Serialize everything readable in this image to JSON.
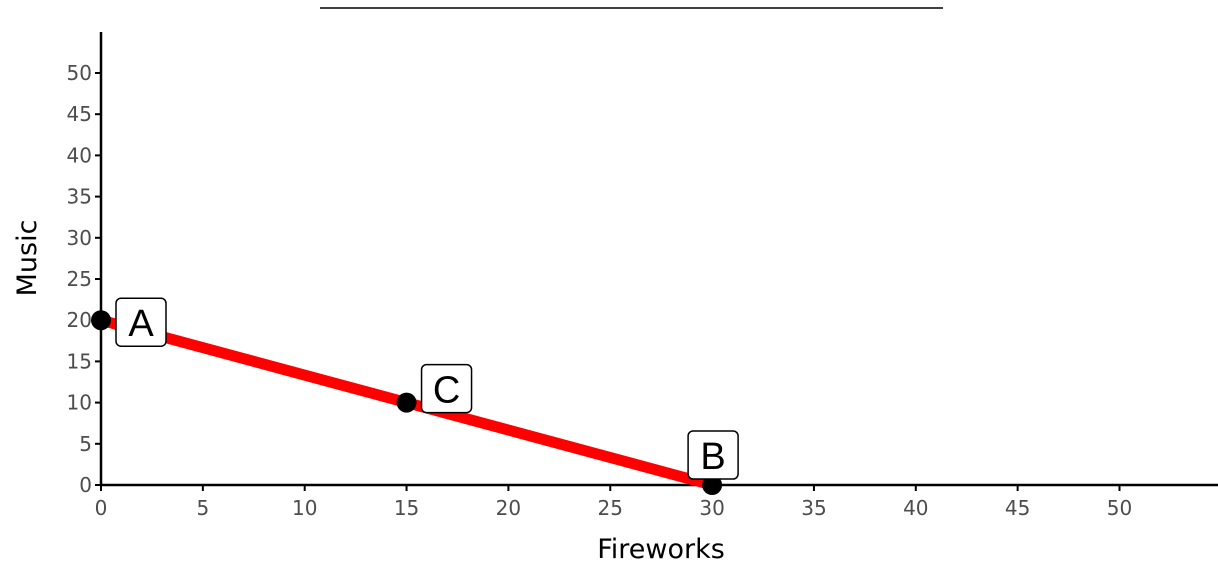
{
  "chart_data": {
    "type": "line",
    "title": "",
    "xlabel": "Fireworks",
    "ylabel": "Music",
    "xlim": [
      0,
      55
    ],
    "ylim": [
      0,
      55
    ],
    "x_ticks": [
      0,
      5,
      10,
      15,
      20,
      25,
      30,
      35,
      40,
      45,
      50
    ],
    "y_ticks": [
      0,
      5,
      10,
      15,
      20,
      25,
      30,
      35,
      40,
      45,
      50
    ],
    "grid": false,
    "series": [
      {
        "x": [
          0,
          30
        ],
        "y": [
          20,
          0
        ],
        "color": "#ff0000"
      }
    ],
    "points": [
      {
        "label": "A",
        "x": 0,
        "y": 20
      },
      {
        "label": "C",
        "x": 15,
        "y": 10
      },
      {
        "label": "B",
        "x": 30,
        "y": 0
      }
    ]
  },
  "colors": {
    "line": "#ff0000",
    "point": "#000000",
    "axis": "#000000",
    "tick_text": "#4d4d4d"
  }
}
